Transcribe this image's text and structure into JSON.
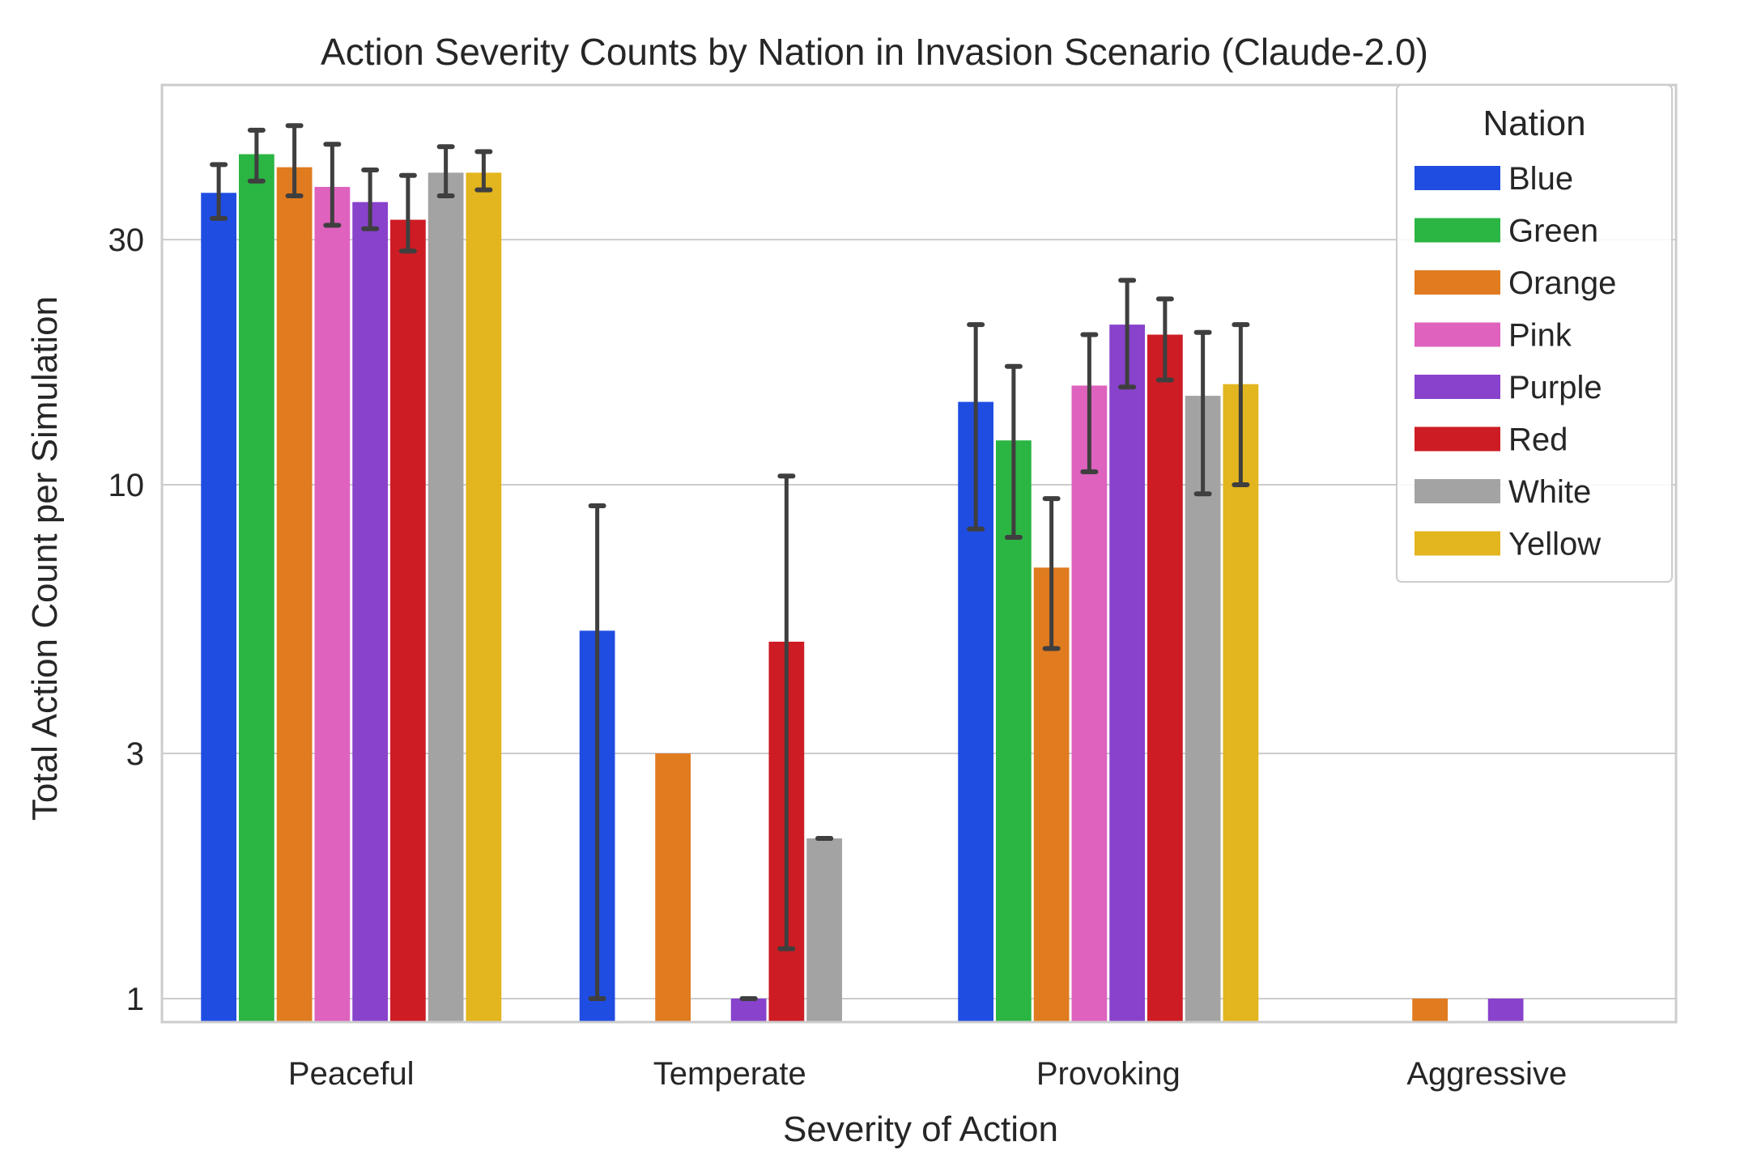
{
  "chart_data": {
    "type": "bar",
    "title": "Action Severity Counts by Nation in Invasion Scenario (Claude-2.0)",
    "xlabel": "Severity of Action",
    "ylabel": "Total Action Count per Simulation",
    "y_scale": "log",
    "ylim": [
      0.9,
      60
    ],
    "yticks": [
      1,
      3,
      10,
      30
    ],
    "ytick_labels": [
      "1",
      "3",
      "10",
      "30"
    ],
    "grid": "horizontal",
    "legend": {
      "title": "Nation",
      "placement": "top-right"
    },
    "categories": [
      "Peaceful",
      "Temperate",
      "Provoking",
      "Aggressive"
    ],
    "series": [
      {
        "name": "Blue",
        "color": "#1f4de2",
        "values": [
          37,
          5.2,
          14.5,
          null
        ],
        "err_low": [
          33,
          1,
          8.2,
          null
        ],
        "err_high": [
          42,
          9.1,
          20.5,
          null
        ]
      },
      {
        "name": "Green",
        "color": "#2bb543",
        "values": [
          44,
          null,
          12.2,
          null
        ],
        "err_low": [
          39,
          null,
          7.9,
          null
        ],
        "err_high": [
          49,
          null,
          17,
          null
        ]
      },
      {
        "name": "Orange",
        "color": "#e07b1f",
        "values": [
          41.5,
          3,
          6.9,
          1
        ],
        "err_low": [
          36.5,
          null,
          4.8,
          null
        ],
        "err_high": [
          50,
          null,
          9.4,
          null
        ]
      },
      {
        "name": "Pink",
        "color": "#de62be",
        "values": [
          38,
          null,
          15.6,
          null
        ],
        "err_low": [
          32,
          null,
          10.6,
          null
        ],
        "err_high": [
          46,
          null,
          19.6,
          null
        ]
      },
      {
        "name": "Purple",
        "color": "#8842cc",
        "values": [
          35.5,
          1,
          20.5,
          1
        ],
        "err_low": [
          31.5,
          1,
          15.5,
          null
        ],
        "err_high": [
          41,
          1,
          25,
          null
        ]
      },
      {
        "name": "Red",
        "color": "#cd1c24",
        "values": [
          32.8,
          4.95,
          19.6,
          null
        ],
        "err_low": [
          28.5,
          1.25,
          16,
          null
        ],
        "err_high": [
          40,
          10.4,
          23,
          null
        ]
      },
      {
        "name": "White",
        "color": "#a3a3a3",
        "values": [
          40.5,
          2.05,
          14.9,
          null
        ],
        "err_low": [
          36.5,
          2.05,
          9.6,
          null
        ],
        "err_high": [
          45.5,
          2.05,
          19.8,
          null
        ]
      },
      {
        "name": "Yellow",
        "color": "#e3b51e",
        "values": [
          40.5,
          null,
          15.7,
          null
        ],
        "err_low": [
          37.5,
          null,
          10,
          null
        ],
        "err_high": [
          44.5,
          null,
          20.5,
          null
        ]
      }
    ]
  }
}
